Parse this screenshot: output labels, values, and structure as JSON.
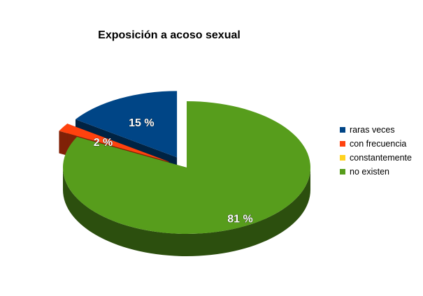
{
  "chart_data": {
    "type": "pie",
    "title": "Exposición a acoso sexual",
    "categories": [
      "raras veces",
      "con frecuencia",
      "constantemente",
      "no existen"
    ],
    "values": [
      15,
      2,
      0,
      81
    ],
    "labels": [
      "15 %",
      "2 %",
      "",
      "81 %"
    ],
    "colors": [
      "#004586",
      "#ff420e",
      "#ffd320",
      "#579d1c"
    ],
    "legend": "right",
    "exploded_slices": [
      "raras veces",
      "con frecuencia",
      "constantemente"
    ]
  }
}
